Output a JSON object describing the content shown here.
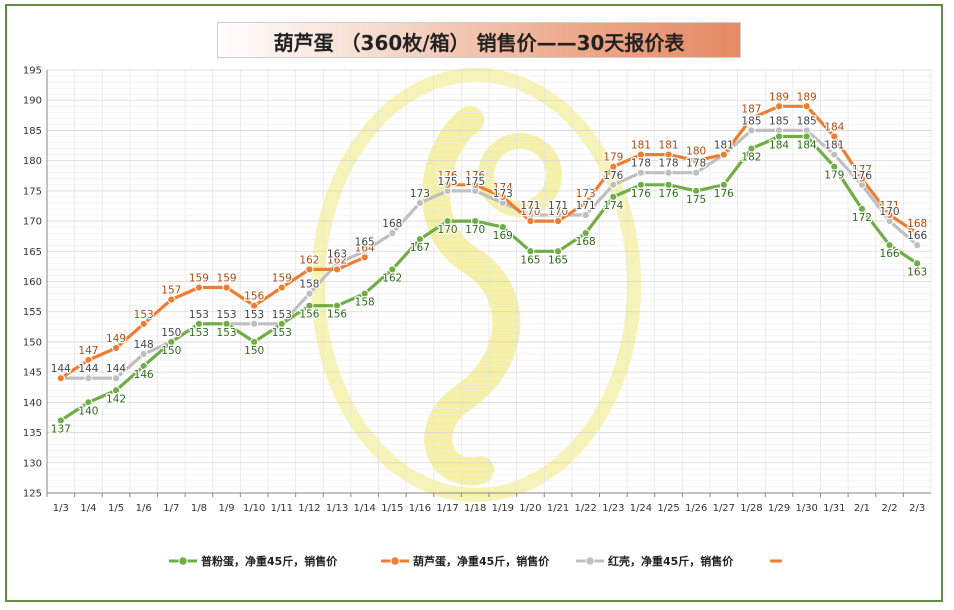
{
  "chart_data": {
    "type": "line",
    "title": "葫芦蛋 （360枚/箱） 销售价——30天报价表",
    "categories": [
      "1/3",
      "1/4",
      "1/5",
      "1/6",
      "1/7",
      "1/8",
      "1/9",
      "1/10",
      "1/11",
      "1/12",
      "1/13",
      "1/14",
      "1/15",
      "1/16",
      "1/17",
      "1/18",
      "1/19",
      "1/20",
      "1/21",
      "1/22",
      "1/23",
      "1/24",
      "1/25",
      "1/26",
      "1/27",
      "1/28",
      "1/29",
      "1/30",
      "1/31",
      "2/1",
      "2/2",
      "2/3"
    ],
    "ylim": [
      125,
      195
    ],
    "yticks": [
      125,
      130,
      135,
      140,
      145,
      150,
      155,
      160,
      165,
      170,
      175,
      180,
      185,
      190,
      195
    ],
    "grid": true,
    "legend_position": "bottom",
    "series": [
      {
        "name": "普粉蛋，净重45斤，销售价",
        "color": "#70ad47",
        "values": [
          137,
          140,
          142,
          146,
          150,
          153,
          153,
          150,
          153,
          156,
          156,
          158,
          162,
          167,
          170,
          170,
          169,
          165,
          165,
          168,
          174,
          176,
          176,
          175,
          176,
          182,
          184,
          184,
          179,
          172,
          166,
          163
        ]
      },
      {
        "name": "葫芦蛋，净重45斤，销售价",
        "color": "#ed7d31",
        "values": [
          144,
          147,
          149,
          153,
          157,
          159,
          159,
          156,
          159,
          162,
          162,
          164,
          null,
          null,
          176,
          176,
          174,
          170,
          170,
          173,
          179,
          181,
          181,
          180,
          181,
          187,
          189,
          189,
          184,
          177,
          171,
          168
        ]
      },
      {
        "name": "红壳，净重45斤，销售价",
        "color": "#bfbfbf",
        "values": [
          144,
          144,
          144,
          148,
          150,
          153,
          153,
          153,
          153,
          158,
          163,
          165,
          168,
          173,
          175,
          175,
          173,
          171,
          171,
          171,
          176,
          178,
          178,
          178,
          181,
          185,
          185,
          185,
          181,
          176,
          170,
          166
        ]
      }
    ]
  }
}
